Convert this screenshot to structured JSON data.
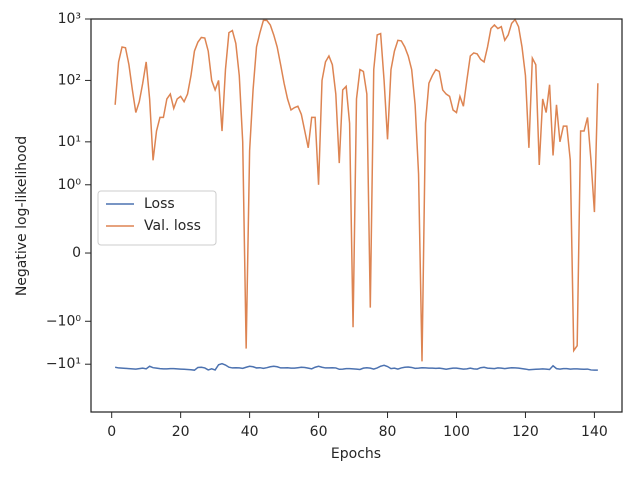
{
  "chart_data": {
    "type": "line",
    "xlabel": "Epochs",
    "ylabel": "Negative log-likelihood",
    "x": [
      1,
      2,
      3,
      4,
      5,
      6,
      7,
      8,
      9,
      10,
      11,
      12,
      13,
      14,
      15,
      16,
      17,
      18,
      19,
      20,
      21,
      22,
      23,
      24,
      25,
      26,
      27,
      28,
      29,
      30,
      31,
      32,
      33,
      34,
      35,
      36,
      37,
      38,
      39,
      40,
      41,
      42,
      43,
      44,
      45,
      46,
      47,
      48,
      49,
      50,
      51,
      52,
      53,
      54,
      55,
      56,
      57,
      58,
      59,
      60,
      61,
      62,
      63,
      64,
      65,
      66,
      67,
      68,
      69,
      70,
      71,
      72,
      73,
      74,
      75,
      76,
      77,
      78,
      79,
      80,
      81,
      82,
      83,
      84,
      85,
      86,
      87,
      88,
      89,
      90,
      91,
      92,
      93,
      94,
      95,
      96,
      97,
      98,
      99,
      100,
      101,
      102,
      103,
      104,
      105,
      106,
      107,
      108,
      109,
      110,
      111,
      112,
      113,
      114,
      115,
      116,
      117,
      118,
      119,
      120,
      121,
      122,
      123,
      124,
      125,
      126,
      127,
      128,
      129,
      130,
      131,
      132,
      133,
      134,
      135,
      136,
      137,
      138,
      139,
      140,
      141
    ],
    "series": [
      {
        "name": "Loss",
        "color": "#4c72b0",
        "values": [
          -11.2,
          -11.5,
          -11.6,
          -11.7,
          -11.8,
          -11.9,
          -12.0,
          -11.8,
          -11.6,
          -11.9,
          -10.8,
          -11.4,
          -11.6,
          -11.8,
          -11.9,
          -11.9,
          -11.8,
          -11.8,
          -11.9,
          -12.0,
          -12.1,
          -12.2,
          -12.3,
          -12.5,
          -11.3,
          -11.2,
          -11.5,
          -12.4,
          -11.9,
          -12.4,
          -10.2,
          -9.8,
          -10.3,
          -11.2,
          -11.5,
          -11.4,
          -11.5,
          -11.7,
          -11.2,
          -10.8,
          -11.0,
          -11.5,
          -11.4,
          -11.7,
          -11.4,
          -11.0,
          -10.8,
          -11.0,
          -11.5,
          -11.5,
          -11.4,
          -11.6,
          -11.6,
          -11.4,
          -11.2,
          -11.3,
          -11.6,
          -11.9,
          -11.2,
          -10.8,
          -11.2,
          -11.5,
          -11.5,
          -11.4,
          -11.5,
          -12.1,
          -12.0,
          -11.8,
          -11.8,
          -11.9,
          -12.0,
          -12.2,
          -11.6,
          -11.4,
          -11.6,
          -12.0,
          -11.5,
          -10.8,
          -10.4,
          -10.9,
          -11.8,
          -11.6,
          -12.0,
          -11.5,
          -11.2,
          -11.1,
          -11.3,
          -11.7,
          -11.6,
          -11.4,
          -11.5,
          -11.6,
          -11.6,
          -11.7,
          -11.6,
          -11.8,
          -12.1,
          -11.8,
          -11.6,
          -11.6,
          -11.8,
          -12.0,
          -11.9,
          -11.6,
          -11.9,
          -12.0,
          -11.4,
          -11.2,
          -11.6,
          -11.7,
          -11.8,
          -11.5,
          -11.6,
          -11.8,
          -11.6,
          -11.4,
          -11.5,
          -11.6,
          -11.8,
          -12.0,
          -12.3,
          -12.2,
          -12.1,
          -12.0,
          -11.9,
          -12.0,
          -12.2,
          -10.6,
          -11.8,
          -12.0,
          -11.8,
          -11.8,
          -12.0,
          -11.9,
          -11.9,
          -12.0,
          -12.1,
          -12.0,
          -12.4,
          -12.5,
          -12.5
        ]
      },
      {
        "name": "Val. loss",
        "color": "#dd8452",
        "values": [
          40,
          200,
          350,
          340,
          180,
          70,
          30,
          45,
          90,
          200,
          50,
          5,
          15,
          25,
          25,
          50,
          60,
          35,
          50,
          55,
          45,
          60,
          120,
          300,
          420,
          500,
          490,
          300,
          100,
          70,
          100,
          15,
          150,
          600,
          650,
          400,
          120,
          10,
          -1.4,
          1.5,
          70,
          350,
          600,
          950,
          950,
          800,
          550,
          350,
          180,
          90,
          50,
          33,
          36,
          38,
          28,
          15,
          8,
          25,
          25,
          1.0,
          100,
          200,
          250,
          180,
          60,
          4.5,
          70,
          80,
          20,
          -2.5,
          50,
          150,
          140,
          60,
          -0.8,
          150,
          550,
          580,
          100,
          11,
          150,
          300,
          450,
          440,
          350,
          250,
          150,
          40,
          3,
          -9,
          20,
          90,
          120,
          150,
          140,
          70,
          60,
          55,
          33,
          30,
          55,
          38,
          100,
          250,
          280,
          270,
          220,
          200,
          350,
          700,
          800,
          700,
          750,
          450,
          550,
          850,
          980,
          750,
          350,
          120,
          8,
          230,
          180,
          4.2,
          50,
          30,
          85,
          6,
          40,
          10,
          18,
          18,
          5,
          -6,
          -5,
          15,
          15,
          25,
          5,
          0.6,
          90
        ]
      }
    ],
    "xlim": [
      -6,
      148
    ],
    "xticks": [
      0,
      20,
      40,
      60,
      80,
      100,
      120,
      140
    ],
    "yscale": "symlog",
    "linthresh": 2,
    "ylim": [
      -60,
      1000
    ],
    "yticks": [
      {
        "value": 1000,
        "label": "10³"
      },
      {
        "value": 100,
        "label": "10²"
      },
      {
        "value": 10,
        "label": "10¹"
      },
      {
        "value": 1,
        "label": "10⁰"
      },
      0,
      {
        "value": -1,
        "label": "−10⁰"
      },
      {
        "value": -10,
        "label": "−10¹"
      }
    ],
    "legend": "center left",
    "grid": false
  }
}
